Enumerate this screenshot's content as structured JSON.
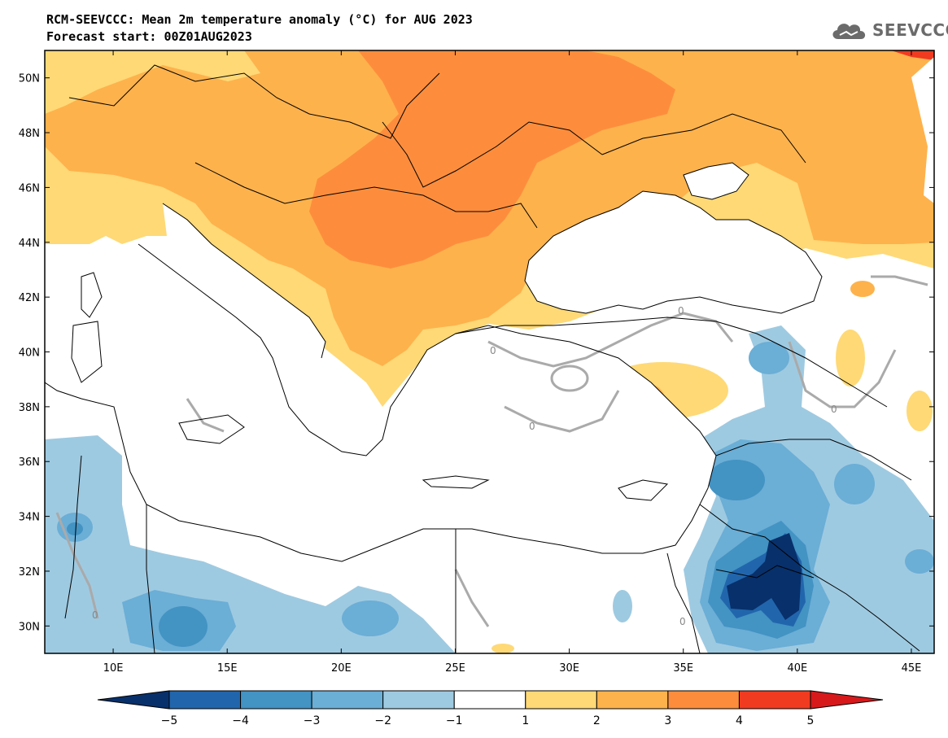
{
  "header": {
    "title": "RCM-SEEVCCC: Mean 2m temperature anomaly (°C) for AUG 2023",
    "subtitle": "Forecast start: 00Z01AUG2023",
    "logo_text": "SEEVCCC"
  },
  "map": {
    "lon_range": [
      7,
      46
    ],
    "lat_range": [
      29,
      51
    ],
    "lon_ticks": [
      10,
      15,
      20,
      25,
      30,
      35,
      40,
      45
    ],
    "lon_tick_labels": [
      "10E",
      "15E",
      "20E",
      "25E",
      "30E",
      "35E",
      "40E",
      "45E"
    ],
    "lat_ticks": [
      30,
      32,
      34,
      36,
      38,
      40,
      42,
      44,
      46,
      48,
      50
    ],
    "lat_tick_labels": [
      "30N",
      "32N",
      "34N",
      "36N",
      "38N",
      "40N",
      "42N",
      "44N",
      "46N",
      "48N",
      "50N"
    ],
    "contour_labels": [
      "0",
      "0",
      "0",
      "0",
      "0",
      "0"
    ]
  },
  "colorbar": {
    "boundaries": [
      -5,
      -4,
      -3,
      -2,
      -1,
      1,
      2,
      3,
      4,
      5
    ],
    "tick_labels": [
      "−5",
      "−4",
      "−3",
      "−2",
      "−1",
      "1",
      "2",
      "3",
      "4",
      "5"
    ],
    "colors": [
      "#08306b",
      "#2166ac",
      "#4393c3",
      "#6baed6",
      "#9ecae1",
      "#ffffff",
      "#fed976",
      "#feb24c",
      "#fd8d3c",
      "#f03b20",
      "#d7191c"
    ]
  }
}
